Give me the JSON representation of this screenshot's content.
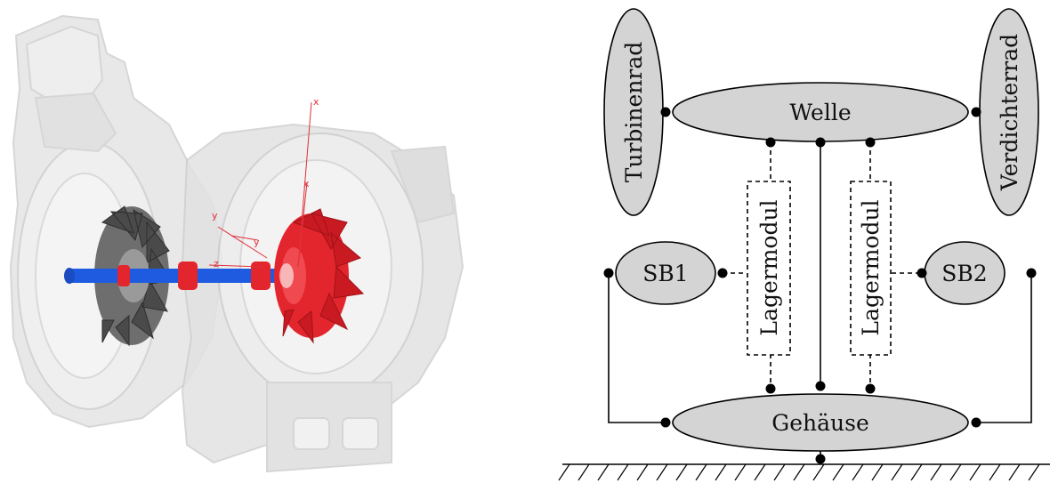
{
  "left_figure": {
    "axis_labels": [
      "x",
      "x",
      "y",
      "y",
      "z"
    ]
  },
  "diagram": {
    "nodes": {
      "welle": "Welle",
      "turbinenrad": "Turbinenrad",
      "verdichterrad": "Verdichterrad",
      "sb1": "SB1",
      "sb2": "SB2",
      "gehaeuse": "Gehäuse",
      "lagermodul_left": "Lagermodul",
      "lagermodul_right": "Lagermodul"
    }
  },
  "colors": {
    "node_fill": "#d4d4d4",
    "stroke": "#000000",
    "rotor_red": "#e3252d",
    "shaft_blue": "#1f5be0",
    "housing_gray": "#e2e2e2"
  }
}
